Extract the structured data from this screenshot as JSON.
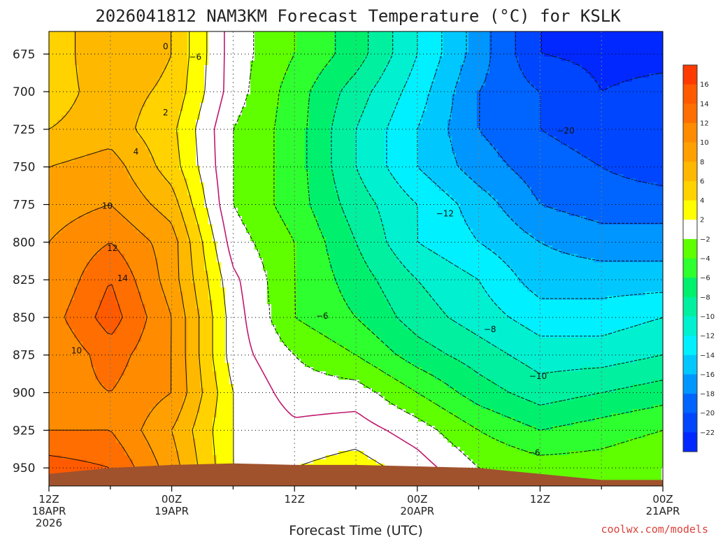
{
  "chart_data": {
    "type": "heatmap",
    "title": "2026041812 NAM3KM Forecast Temperature (°C) for KSLK",
    "xlabel": "Forecast Time (UTC)",
    "ylabel": "",
    "credit": "coolwx.com/models",
    "x_hours": [
      0,
      6,
      12,
      18,
      24,
      30,
      36,
      42,
      48,
      54,
      60
    ],
    "x_tick_hours": [
      0,
      12,
      24,
      36,
      48,
      60
    ],
    "x_ticks": [
      [
        "12Z",
        "18APR",
        "2026"
      ],
      [
        "00Z",
        "19APR"
      ],
      [
        "12Z"
      ],
      [
        "00Z",
        "20APR"
      ],
      [
        "12Z"
      ],
      [
        "00Z",
        "21APR"
      ]
    ],
    "y_levels_hpa": [
      675,
      700,
      725,
      750,
      775,
      800,
      825,
      850,
      875,
      900,
      925,
      950
    ],
    "ylim": [
      660,
      962
    ],
    "xlim": [
      0,
      60
    ],
    "temperature_c": [
      [
        4.5,
        8.0,
        6.0,
        -1.0,
        -4.0,
        -7.0,
        -12.0,
        -17.0,
        -22.0,
        -22.5,
        -22.5
      ],
      [
        5.0,
        7.0,
        5.5,
        -1.0,
        -5.0,
        -9.0,
        -13.0,
        -18.0,
        -20.0,
        -22.0,
        -21.5
      ],
      [
        6.0,
        7.0,
        4.5,
        -2.0,
        -5.0,
        -10.0,
        -14.0,
        -18.0,
        -20.0,
        -21.0,
        -21.0
      ],
      [
        8.0,
        9.0,
        5.0,
        -2.0,
        -5.0,
        -10.0,
        -14.0,
        -17.0,
        -19.0,
        -20.0,
        -21.0
      ],
      [
        9.0,
        10.0,
        7.0,
        -2.0,
        -5.0,
        -9.0,
        -12.0,
        -15.0,
        -18.0,
        -19.0,
        -19.0
      ],
      [
        10.0,
        12.0,
        9.0,
        -1.0,
        -4.0,
        -8.0,
        -12.0,
        -14.0,
        -16.0,
        -17.0,
        -17.0
      ],
      [
        10.0,
        14.0,
        9.0,
        0.5,
        -4.0,
        -7.0,
        -10.0,
        -12.0,
        -15.0,
        -15.0,
        -15.0
      ],
      [
        11.0,
        15.0,
        10.0,
        1.0,
        -4.0,
        -6.0,
        -9.0,
        -11.0,
        -13.0,
        -13.0,
        -12.0
      ],
      [
        10.0,
        13.0,
        10.0,
        1.0,
        -2.0,
        -4.0,
        -7.0,
        -9.0,
        -11.0,
        -11.0,
        -10.0
      ],
      [
        11.0,
        12.0,
        10.0,
        2.0,
        -1.0,
        -1.0,
        -4.0,
        -7.0,
        -9.0,
        -8.0,
        -7.0
      ],
      [
        12.0,
        12.0,
        8.0,
        2.0,
        0.5,
        1.0,
        -1.0,
        -4.0,
        -6.0,
        -5.0,
        -4.0
      ],
      [
        15.0,
        14.0,
        9.0,
        2.0,
        2.0,
        3.0,
        1.0,
        -2.0,
        -3.0,
        -3.0,
        -2.0
      ]
    ],
    "contour_levels": [
      -22,
      -20,
      -18,
      -16,
      -14,
      -12,
      -10,
      -8,
      -6,
      -4,
      -2,
      0,
      2,
      4,
      6,
      8,
      10,
      12,
      14,
      16
    ],
    "contour_labels": [
      {
        "text": "0",
        "h": 11.4,
        "p": 670
      },
      {
        "text": "−6",
        "h": 14.3,
        "p": 677
      },
      {
        "text": "2",
        "h": 11.4,
        "p": 714
      },
      {
        "text": "4",
        "h": 8.5,
        "p": 740
      },
      {
        "text": "−20",
        "h": 50.5,
        "p": 726
      },
      {
        "text": "10",
        "h": 5.7,
        "p": 776
      },
      {
        "text": "−12",
        "h": 38.7,
        "p": 781
      },
      {
        "text": "12",
        "h": 6.2,
        "p": 804
      },
      {
        "text": "14",
        "h": 7.2,
        "p": 824
      },
      {
        "text": "−6",
        "h": 26.7,
        "p": 849
      },
      {
        "text": "−8",
        "h": 43.1,
        "p": 858
      },
      {
        "text": "10",
        "h": 2.7,
        "p": 872
      },
      {
        "text": "−10",
        "h": 47.8,
        "p": 889
      },
      {
        "text": "−6",
        "h": 47.4,
        "p": 940
      }
    ],
    "colorbar": {
      "labels": [
        "16",
        "14",
        "12",
        "10",
        "8",
        "6",
        "4",
        "2",
        "−2",
        "−4",
        "−6",
        "−8",
        "−10",
        "−12",
        "−14",
        "−16",
        "−18",
        "−20",
        "−22"
      ],
      "colors": [
        "#ff3a00",
        "#ff5a00",
        "#ff6e00",
        "#ff8c00",
        "#ffa000",
        "#ffb800",
        "#ffd200",
        "#ffff00",
        "#ffffff",
        "#5fff00",
        "#2eff2e",
        "#00f06e",
        "#00f0a0",
        "#00f0d0",
        "#00f0ff",
        "#00c8ff",
        "#0096ff",
        "#0064ff",
        "#0046ff",
        "#0028ff"
      ]
    },
    "terrain": {
      "color": "#a0522d",
      "pressure_hpa": [
        954,
        950,
        948,
        947,
        948,
        948,
        949,
        950,
        954,
        958,
        958
      ]
    }
  }
}
